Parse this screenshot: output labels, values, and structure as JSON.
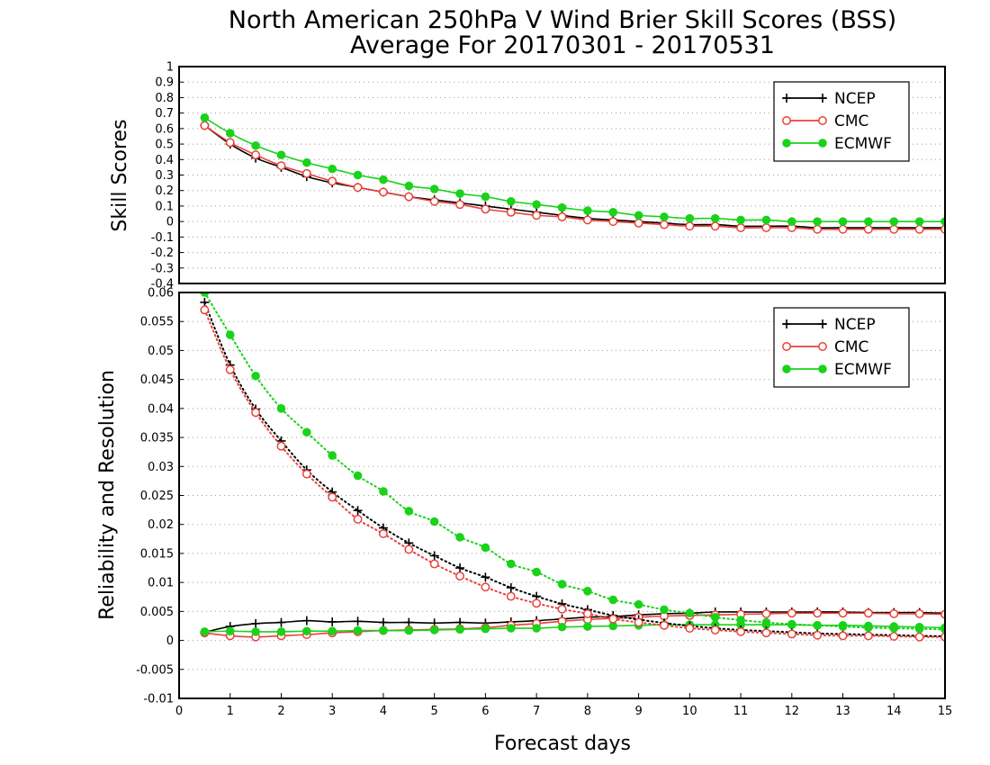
{
  "chart_data": {
    "title": "North American 250hPa V Wind Brier Skill Scores (BSS)",
    "subtitle": "Average For 20170301 - 20170531",
    "xlabel": "Forecast days",
    "xlim": [
      0,
      15
    ],
    "x_ticks": [
      "0",
      "1",
      "2",
      "3",
      "4",
      "5",
      "6",
      "7",
      "8",
      "9",
      "10",
      "11",
      "12",
      "13",
      "14",
      "15"
    ],
    "x": [
      0.5,
      1,
      1.5,
      2,
      2.5,
      3,
      3.5,
      4,
      4.5,
      5,
      5.5,
      6,
      6.5,
      7,
      7.5,
      8,
      8.5,
      9,
      9.5,
      10,
      10.5,
      11,
      11.5,
      12,
      12.5,
      13,
      13.5,
      14,
      14.5,
      15
    ],
    "colors": {
      "NCEP": "#000000",
      "CMC": "#e8423a",
      "ECMWF": "#1ad21a",
      "grid": "#9a9a9a"
    },
    "legend_position": "top-right",
    "panels": [
      {
        "type": "line",
        "ylabel": "Skill Scores",
        "ylim": [
          -0.4,
          1
        ],
        "y_ticks": [
          "-0.4",
          "-0.3",
          "-0.2",
          "-0.1",
          "0",
          "0.1",
          "0.2",
          "0.3",
          "0.4",
          "0.5",
          "0.6",
          "0.7",
          "0.8",
          "0.9",
          "1"
        ],
        "grid": true,
        "legend": [
          "NCEP",
          "CMC",
          "ECMWF"
        ],
        "series": [
          {
            "name": "NCEP",
            "marker": "plus",
            "style": "solid",
            "values": [
              0.62,
              0.5,
              0.41,
              0.35,
              0.29,
              0.25,
              0.22,
              0.19,
              0.16,
              0.14,
              0.12,
              0.1,
              0.08,
              0.06,
              0.04,
              0.02,
              0.01,
              0.0,
              -0.01,
              -0.02,
              -0.02,
              -0.03,
              -0.03,
              -0.03,
              -0.04,
              -0.04,
              -0.04,
              -0.04,
              -0.04,
              -0.04
            ]
          },
          {
            "name": "CMC",
            "marker": "circle-open",
            "style": "solid",
            "values": [
              0.62,
              0.51,
              0.43,
              0.36,
              0.31,
              0.26,
              0.22,
              0.19,
              0.16,
              0.13,
              0.11,
              0.08,
              0.06,
              0.04,
              0.03,
              0.01,
              0.0,
              -0.01,
              -0.02,
              -0.03,
              -0.03,
              -0.04,
              -0.04,
              -0.04,
              -0.05,
              -0.05,
              -0.05,
              -0.05,
              -0.05,
              -0.05
            ]
          },
          {
            "name": "ECMWF",
            "marker": "circle-filled",
            "style": "solid",
            "values": [
              0.67,
              0.57,
              0.49,
              0.43,
              0.38,
              0.34,
              0.3,
              0.27,
              0.23,
              0.21,
              0.18,
              0.16,
              0.13,
              0.11,
              0.09,
              0.07,
              0.06,
              0.04,
              0.03,
              0.02,
              0.02,
              0.01,
              0.01,
              0.0,
              0.0,
              0.0,
              0.0,
              0.0,
              0.0,
              0.0
            ]
          }
        ]
      },
      {
        "type": "line",
        "ylabel": "Reliability and Resolution",
        "ylim": [
          -0.01,
          0.06
        ],
        "y_ticks": [
          "-0.01",
          "-0.005",
          "0",
          "0.005",
          "0.01",
          "0.015",
          "0.02",
          "0.025",
          "0.03",
          "0.035",
          "0.04",
          "0.045",
          "0.05",
          "0.055",
          "0.06"
        ],
        "grid": true,
        "legend": [
          "NCEP",
          "CMC",
          "ECMWF"
        ],
        "series": [
          {
            "name": "NCEP",
            "component": "resolution",
            "marker": "plus",
            "style": "solid",
            "values": [
              0.0014,
              0.0024,
              0.0029,
              0.0031,
              0.0034,
              0.0032,
              0.0033,
              0.0031,
              0.0031,
              0.003,
              0.0031,
              0.003,
              0.0032,
              0.0034,
              0.0037,
              0.004,
              0.0041,
              0.0044,
              0.0046,
              0.0047,
              0.0049,
              0.0049,
              0.0049,
              0.0049,
              0.0049,
              0.0049,
              0.0048,
              0.0048,
              0.0048,
              0.0047
            ]
          },
          {
            "name": "CMC",
            "component": "resolution",
            "marker": "circle-open",
            "style": "solid",
            "values": [
              0.0013,
              0.0008,
              0.0006,
              0.0008,
              0.001,
              0.0013,
              0.0015,
              0.0017,
              0.0018,
              0.0019,
              0.002,
              0.0022,
              0.0026,
              0.0029,
              0.0033,
              0.0036,
              0.0038,
              0.004,
              0.0042,
              0.0043,
              0.0044,
              0.0045,
              0.0046,
              0.0047,
              0.0047,
              0.0047,
              0.0047,
              0.0046,
              0.0046,
              0.0045
            ]
          },
          {
            "name": "ECMWF",
            "component": "resolution",
            "marker": "circle-filled",
            "style": "solid",
            "values": [
              0.0015,
              0.0016,
              0.0015,
              0.0015,
              0.0016,
              0.0016,
              0.0017,
              0.0017,
              0.0017,
              0.0018,
              0.0019,
              0.002,
              0.0021,
              0.0021,
              0.0023,
              0.0024,
              0.0025,
              0.0026,
              0.0027,
              0.0027,
              0.0027,
              0.0027,
              0.0027,
              0.0027,
              0.0026,
              0.0026,
              0.0025,
              0.0024,
              0.0023,
              0.0022
            ]
          },
          {
            "name": "NCEP",
            "component": "reliability",
            "marker": "plus",
            "style": "dotted",
            "values": [
              0.0583,
              0.0475,
              0.0399,
              0.0344,
              0.0294,
              0.0256,
              0.0224,
              0.0194,
              0.0168,
              0.0146,
              0.0125,
              0.0109,
              0.0091,
              0.0076,
              0.0063,
              0.0053,
              0.0043,
              0.0036,
              0.003,
              0.0025,
              0.0021,
              0.0018,
              0.0016,
              0.0014,
              0.0012,
              0.0011,
              0.001,
              0.0009,
              0.0008,
              0.0007
            ]
          },
          {
            "name": "CMC",
            "component": "reliability",
            "marker": "circle-open",
            "style": "dotted",
            "values": [
              0.057,
              0.0467,
              0.0393,
              0.0335,
              0.0287,
              0.0247,
              0.0209,
              0.0184,
              0.0157,
              0.0132,
              0.0111,
              0.0092,
              0.0076,
              0.0064,
              0.0054,
              0.0046,
              0.0037,
              0.0031,
              0.0026,
              0.0021,
              0.0018,
              0.0015,
              0.0013,
              0.0011,
              0.0009,
              0.0008,
              0.0008,
              0.0007,
              0.0006,
              0.0006
            ]
          },
          {
            "name": "ECMWF",
            "component": "reliability",
            "marker": "circle-filled",
            "style": "dotted",
            "values": [
              0.06,
              0.0527,
              0.0456,
              0.04,
              0.0359,
              0.0319,
              0.0284,
              0.0257,
              0.0223,
              0.0205,
              0.0178,
              0.016,
              0.0132,
              0.0118,
              0.0097,
              0.0085,
              0.007,
              0.0062,
              0.0053,
              0.0047,
              0.004,
              0.0035,
              0.0031,
              0.0028,
              0.0026,
              0.0024,
              0.0022,
              0.0021,
              0.002,
              0.0019
            ]
          }
        ]
      }
    ]
  }
}
